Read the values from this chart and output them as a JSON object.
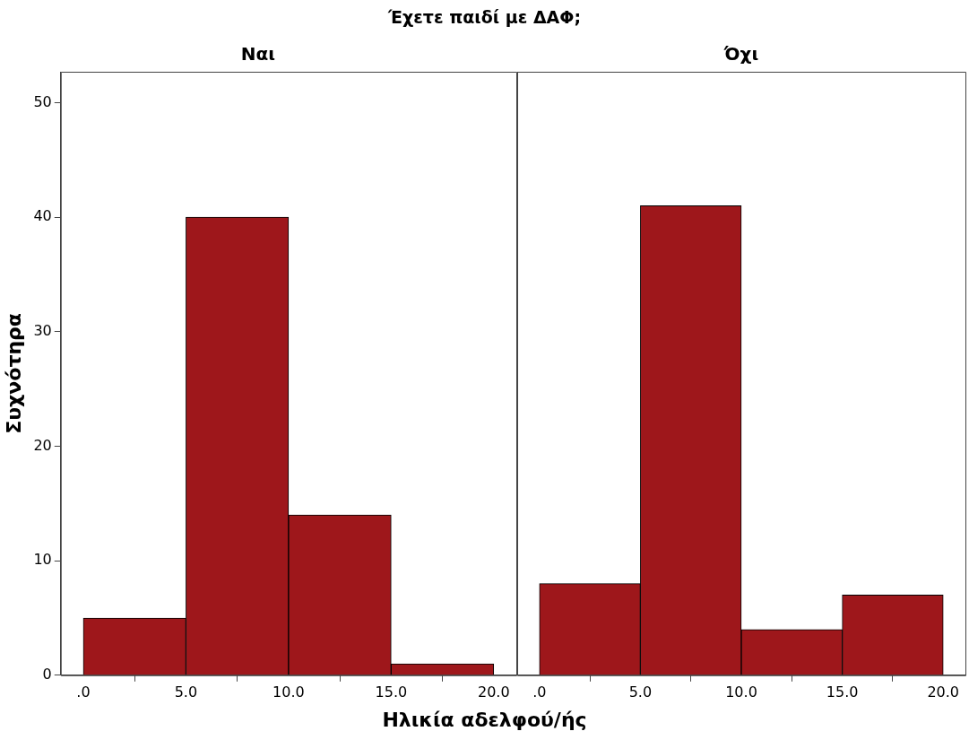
{
  "chart_data": [
    {
      "type": "histogram",
      "title": "Ναι",
      "ylabel": "Συχνότηρα",
      "xlabel": "Ηλικία αδελφού/ής",
      "annotations": [
        "Έχετε παιδί με ΔΑΦ;"
      ],
      "bins": [
        0,
        5,
        10,
        15,
        20
      ],
      "values": [
        5,
        40,
        14,
        1
      ],
      "color": "#9e171b",
      "xlim": [
        -1.1,
        21.1
      ],
      "xticks": [
        {
          "value": 0,
          "label": ".0"
        },
        {
          "value": 5,
          "label": "5.0"
        },
        {
          "value": 10,
          "label": "10.0"
        },
        {
          "value": 15,
          "label": "15.0"
        },
        {
          "value": 20,
          "label": "20.0"
        }
      ],
      "ylim": [
        0,
        52.7
      ],
      "yticks": [
        0,
        10,
        20,
        30,
        40,
        50
      ],
      "grid": false,
      "legend": false
    },
    {
      "type": "histogram",
      "title": "Όχι",
      "bins": [
        0,
        5,
        10,
        15,
        20
      ],
      "values": [
        8,
        41,
        4,
        7
      ],
      "color": "#9e171b",
      "xlim": [
        -1.1,
        21.1
      ],
      "xticks": [
        {
          "value": 0,
          "label": ".0"
        },
        {
          "value": 5,
          "label": "5.0"
        },
        {
          "value": 10,
          "label": "10.0"
        },
        {
          "value": 15,
          "label": "15.0"
        },
        {
          "value": 20,
          "label": "20.0"
        }
      ],
      "ylim": [
        0,
        52.7
      ],
      "yticks": [
        0,
        10,
        20,
        30,
        40,
        50
      ],
      "grid": false,
      "legend": false,
      "tick_labels": "x"
    }
  ]
}
